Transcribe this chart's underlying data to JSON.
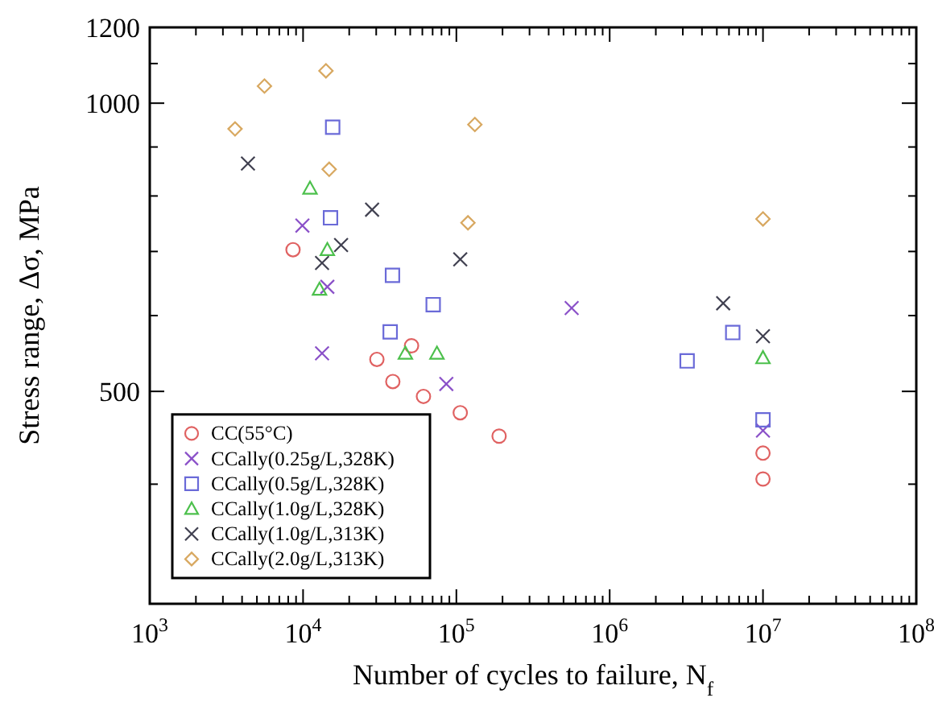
{
  "chart_data": {
    "type": "scatter",
    "xlabel": "Number of cycles to failure, N$_{f}$",
    "ylabel": "Stress range, Δσ, MPa",
    "log": "xy",
    "xlim": [
      1000,
      100000000
    ],
    "ylim": [
      300,
      1200
    ],
    "xticks": [
      {
        "value": 1000,
        "label": "10$^{3}$"
      },
      {
        "value": 2000,
        "label": null
      },
      {
        "value": 3000,
        "label": null
      },
      {
        "value": 4000,
        "label": null
      },
      {
        "value": 5000,
        "label": null
      },
      {
        "value": 6000,
        "label": null
      },
      {
        "value": 7000,
        "label": null
      },
      {
        "value": 8000,
        "label": null
      },
      {
        "value": 9000,
        "label": null
      },
      {
        "value": 10000,
        "label": "10$^{4}$"
      },
      {
        "value": 20000,
        "label": null
      },
      {
        "value": 30000,
        "label": null
      },
      {
        "value": 40000,
        "label": null
      },
      {
        "value": 50000,
        "label": null
      },
      {
        "value": 60000,
        "label": null
      },
      {
        "value": 70000,
        "label": null
      },
      {
        "value": 80000,
        "label": null
      },
      {
        "value": 90000,
        "label": null
      },
      {
        "value": 100000,
        "label": "10$^{5}$"
      },
      {
        "value": 200000,
        "label": null
      },
      {
        "value": 300000,
        "label": null
      },
      {
        "value": 400000,
        "label": null
      },
      {
        "value": 500000,
        "label": null
      },
      {
        "value": 600000,
        "label": null
      },
      {
        "value": 700000,
        "label": null
      },
      {
        "value": 800000,
        "label": null
      },
      {
        "value": 900000,
        "label": null
      },
      {
        "value": 1000000,
        "label": "10$^{6}$"
      },
      {
        "value": 2000000,
        "label": null
      },
      {
        "value": 3000000,
        "label": null
      },
      {
        "value": 4000000,
        "label": null
      },
      {
        "value": 5000000,
        "label": null
      },
      {
        "value": 6000000,
        "label": null
      },
      {
        "value": 7000000,
        "label": null
      },
      {
        "value": 8000000,
        "label": null
      },
      {
        "value": 9000000,
        "label": null
      },
      {
        "value": 10000000,
        "label": "10$^{7}$"
      },
      {
        "value": 20000000,
        "label": null
      },
      {
        "value": 30000000,
        "label": null
      },
      {
        "value": 40000000,
        "label": null
      },
      {
        "value": 50000000,
        "label": null
      },
      {
        "value": 60000000,
        "label": null
      },
      {
        "value": 70000000,
        "label": null
      },
      {
        "value": 80000000,
        "label": null
      },
      {
        "value": 90000000,
        "label": null
      },
      {
        "value": 100000000,
        "label": "10$^{8}$"
      }
    ],
    "yticks": [
      {
        "value": 400,
        "label": null
      },
      500,
      {
        "value": 600,
        "label": null
      },
      {
        "value": 700,
        "label": null
      },
      {
        "value": 800,
        "label": null
      },
      {
        "value": 900,
        "label": null
      },
      1000,
      {
        "value": 1100,
        "label": null
      },
      1200
    ],
    "grid": false,
    "legend": "bottom left",
    "series": [
      {
        "name": "CC(55°C)",
        "color": "#e06262",
        "marker": "circle",
        "x": [
          8600,
          30300,
          51000,
          38500,
          61000,
          106000,
          190000,
          10000000,
          10000000
        ],
        "values": [
          703,
          540,
          558,
          512,
          494,
          475,
          449,
          431,
          405
        ]
      },
      {
        "name": "CCally(0.25g/L,328K)",
        "color": "#8a50c8",
        "marker": "cross",
        "x": [
          9900,
          14400,
          13300,
          86000,
          565000,
          10000000
        ],
        "values": [
          745,
          643,
          548,
          509,
          611,
          455
        ]
      },
      {
        "name": "CCally(0.5g/L,328K)",
        "color": "#6a6ad8",
        "marker": "square",
        "x": [
          15600,
          15100,
          38300,
          70600,
          37000,
          6350000,
          3200000,
          10000000
        ],
        "values": [
          944,
          759,
          661,
          616,
          577,
          576,
          538,
          467
        ]
      },
      {
        "name": "CCally(1.0g/L,328K)",
        "color": "#4cc04c",
        "marker": "triangle",
        "x": [
          11100,
          14400,
          12800,
          46500,
          74700,
          10000000
        ],
        "values": [
          815,
          703,
          639,
          548,
          548,
          542
        ]
      },
      {
        "name": "CCally(1.0g/L,313K)",
        "color": "#404050",
        "marker": "cross",
        "x": [
          4370,
          28200,
          17700,
          13300,
          106000,
          5500000,
          10000000
        ],
        "values": [
          865,
          774,
          711,
          681,
          687,
          618,
          571
        ]
      },
      {
        "name": "CCally(2.0g/L,313K)",
        "color": "#d8a860",
        "marker": "diamond",
        "x": [
          14100,
          5600,
          3600,
          132000,
          14800,
          119000,
          10000000
        ],
        "values": [
          1081,
          1042,
          940,
          950,
          853,
          750,
          757
        ]
      }
    ]
  }
}
